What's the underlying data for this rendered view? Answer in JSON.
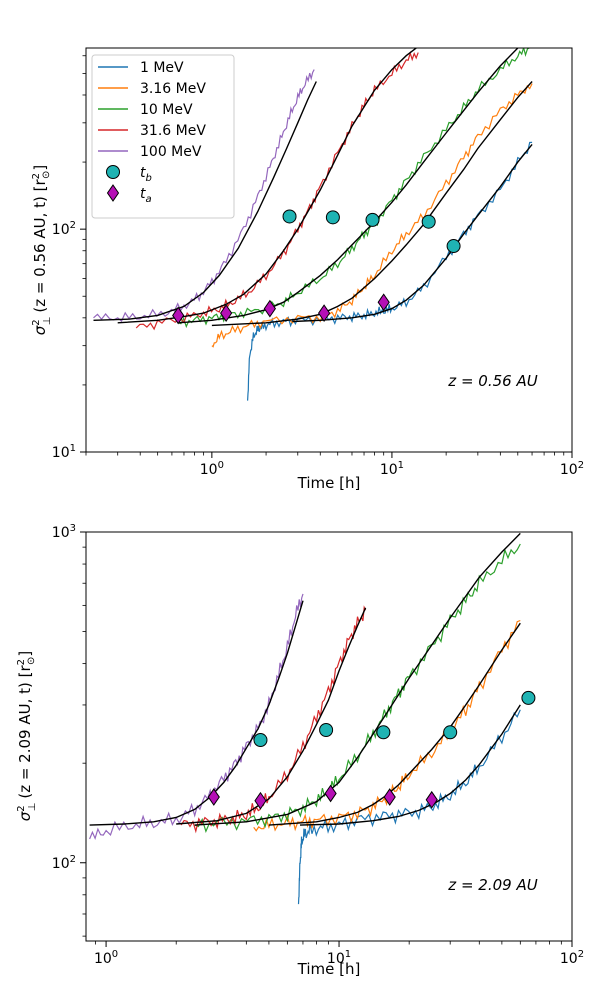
{
  "chart_data": [
    {
      "type": "line",
      "xscale": "log",
      "yscale": "log",
      "xlim": [
        0.2,
        100
      ],
      "ylim": [
        10,
        650
      ],
      "xticks": [
        {
          "value": 1,
          "base": "10",
          "exp": "0"
        },
        {
          "value": 10,
          "base": "10",
          "exp": "1"
        },
        {
          "value": 100,
          "base": "10",
          "exp": "2"
        }
      ],
      "yticks": [
        {
          "value": 10,
          "base": "10",
          "exp": "1"
        },
        {
          "value": 100,
          "base": "10",
          "exp": "2"
        }
      ],
      "xlabel": "Time [h]",
      "ylabel": "(z = 0.56 AU, t) [r",
      "annotation": "z = 0.56 AU",
      "legend_placement": "top-left",
      "legend": [
        {
          "label": "1 MeV",
          "kind": "line",
          "color": "#1f77b4"
        },
        {
          "label": "3.16 MeV",
          "kind": "line",
          "color": "#ff7f0e"
        },
        {
          "label": "10 MeV",
          "kind": "line",
          "color": "#2ca02c"
        },
        {
          "label": "31.6 MeV",
          "kind": "line",
          "color": "#d62728"
        },
        {
          "label": "100 MeV",
          "kind": "line",
          "color": "#9467bd"
        },
        {
          "label": "t",
          "sub": "b",
          "kind": "circle",
          "color": "#1fb3b3"
        },
        {
          "label": "t",
          "sub": "a",
          "kind": "diamond",
          "color": "#b50fb5"
        }
      ],
      "series": [
        {
          "name": "1 MeV",
          "color": "#1f77b4",
          "x": [
            1.58,
            1.62,
            1.7,
            1.8,
            1.9,
            2.1,
            2.5,
            3,
            4,
            5,
            6,
            7,
            8,
            9,
            10,
            12,
            15,
            20,
            25,
            30,
            40,
            50,
            60
          ],
          "y": [
            17,
            27,
            33,
            35.5,
            36.5,
            37.5,
            38.5,
            39,
            39.5,
            40,
            40.5,
            41,
            42,
            43,
            44,
            47,
            55,
            75,
            95,
            115,
            150,
            200,
            245
          ],
          "fit": {
            "x": [
              2.8,
              4,
              6,
              8,
              10,
              12,
              15,
              20,
              25,
              30,
              40,
              50,
              60
            ],
            "y": [
              38.5,
              39,
              40,
              41.5,
              44,
              48,
              56,
              74,
              95,
              115,
              155,
              200,
              240
            ]
          }
        },
        {
          "name": "3.16 MeV",
          "color": "#ff7f0e",
          "x": [
            1.0,
            1.1,
            1.3,
            1.6,
            2,
            3,
            4,
            5,
            6,
            7,
            8,
            10,
            12,
            15,
            20,
            25,
            30,
            40,
            50,
            60
          ],
          "y": [
            30,
            33,
            35,
            37,
            38.5,
            40,
            40,
            43,
            48,
            55,
            62,
            80,
            95,
            115,
            160,
            210,
            260,
            340,
            400,
            450
          ],
          "fit": {
            "x": [
              1.0,
              2,
              3,
              4,
              5,
              6,
              8,
              10,
              12,
              15,
              20,
              25,
              30,
              40,
              50,
              60
            ],
            "y": [
              37,
              38,
              39.5,
              41.5,
              45,
              49,
              60,
              72,
              85,
              105,
              145,
              185,
              230,
              310,
              390,
              460
            ]
          }
        },
        {
          "name": "10 MeV",
          "color": "#2ca02c",
          "x": [
            0.65,
            0.8,
            1,
            1.2,
            1.5,
            2,
            2.5,
            3,
            4,
            5,
            6,
            7,
            8,
            10,
            12,
            15,
            20,
            25,
            30,
            40,
            50,
            58
          ],
          "y": [
            38,
            39,
            40,
            41,
            42,
            44,
            47,
            52,
            60,
            70,
            82,
            95,
            105,
            135,
            165,
            210,
            280,
            350,
            420,
            520,
            600,
            650
          ],
          "fit": {
            "x": [
              0.65,
              1,
              1.5,
              2,
              2.5,
              3,
              4,
              5,
              6,
              8,
              10,
              12,
              15,
              20,
              25,
              30,
              40,
              50,
              60
            ],
            "y": [
              38,
              39,
              41,
              43.5,
              47,
              52,
              62,
              73,
              85,
              108,
              132,
              158,
              200,
              270,
              340,
              410,
              540,
              650,
              720
            ]
          }
        },
        {
          "name": "31.6 MeV",
          "color": "#d62728",
          "x": [
            0.38,
            0.5,
            0.7,
            0.9,
            1.1,
            1.3,
            1.6,
            2,
            2.5,
            3,
            3.5,
            4,
            5,
            6,
            7,
            8,
            10,
            12,
            14
          ],
          "y": [
            36,
            38,
            40,
            42,
            44,
            47,
            52,
            62,
            78,
            100,
            125,
            155,
            220,
            290,
            360,
            420,
            500,
            570,
            620
          ],
          "fit": {
            "x": [
              0.3,
              0.5,
              0.7,
              0.9,
              1.2,
              1.5,
              2,
              2.5,
              3,
              4,
              5,
              6,
              8,
              10,
              12,
              14
            ],
            "y": [
              38,
              39,
              40.5,
              42,
              46,
              51,
              63,
              80,
              100,
              150,
              215,
              290,
              420,
              520,
              600,
              660
            ]
          }
        },
        {
          "name": "100 MeV",
          "color": "#9467bd",
          "x": [
            0.22,
            0.3,
            0.4,
            0.55,
            0.7,
            0.85,
            1,
            1.2,
            1.5,
            1.8,
            2.1,
            2.4,
            2.7,
            3,
            3.3,
            3.7
          ],
          "y": [
            40,
            40,
            40.5,
            42,
            45,
            50,
            58,
            72,
            100,
            140,
            190,
            250,
            320,
            390,
            450,
            520
          ],
          "fit": {
            "x": [
              0.22,
              0.35,
              0.5,
              0.7,
              0.9,
              1.1,
              1.4,
              1.8,
              2.2,
              2.6,
              3,
              3.4,
              3.8
            ],
            "y": [
              39,
              39.5,
              41,
              45,
              52,
              62,
              82,
              120,
              170,
              230,
              300,
              380,
              460
            ]
          }
        }
      ],
      "tb_points": [
        {
          "x": 22,
          "y": 84
        },
        {
          "x": 16,
          "y": 108
        },
        {
          "x": 7.8,
          "y": 110
        },
        {
          "x": 4.7,
          "y": 113
        },
        {
          "x": 2.7,
          "y": 114
        }
      ],
      "ta_points": [
        {
          "x": 9.0,
          "y": 47
        },
        {
          "x": 4.2,
          "y": 42
        },
        {
          "x": 2.1,
          "y": 44
        },
        {
          "x": 1.2,
          "y": 42
        },
        {
          "x": 0.65,
          "y": 41
        }
      ]
    },
    {
      "type": "line",
      "xscale": "log",
      "yscale": "log",
      "xlim": [
        0.82,
        100
      ],
      "ylim": [
        58,
        1000
      ],
      "xticks": [
        {
          "value": 1,
          "base": "10",
          "exp": "0"
        },
        {
          "value": 10,
          "base": "10",
          "exp": "1"
        },
        {
          "value": 100,
          "base": "10",
          "exp": "2"
        }
      ],
      "yticks": [
        {
          "value": 100,
          "base": "10",
          "exp": "2"
        },
        {
          "value": 1000,
          "base": "10",
          "exp": "3"
        }
      ],
      "xlabel": "Time [h]",
      "ylabel": "(z = 2.09 AU, t) [r",
      "annotation": "z = 2.09 AU",
      "series": [
        {
          "name": "1 MeV",
          "color": "#1f77b4",
          "x": [
            6.7,
            6.8,
            6.9,
            7.1,
            7.5,
            8.5,
            10,
            12,
            15,
            18,
            22,
            26,
            30,
            35,
            40,
            50,
            60
          ],
          "y": [
            75,
            100,
            115,
            122,
            125,
            128,
            130,
            135,
            138,
            140,
            143,
            150,
            160,
            175,
            195,
            240,
            290
          ],
          "fit": {
            "x": [
              6.8,
              10,
              14,
              18,
              22,
              26,
              30,
              35,
              40,
              50,
              60
            ],
            "y": [
              130,
              131,
              134,
              138,
              144,
              152,
              162,
              178,
              198,
              245,
              300
            ]
          }
        },
        {
          "name": "3.16 MeV",
          "color": "#ff7f0e",
          "x": [
            4.3,
            5,
            6,
            7,
            8,
            10,
            12,
            14,
            16,
            18,
            20,
            25,
            30,
            35,
            40,
            50,
            60
          ],
          "y": [
            128,
            130,
            132,
            133,
            134,
            137,
            141,
            148,
            158,
            170,
            185,
            215,
            250,
            290,
            340,
            440,
            540
          ],
          "fit": {
            "x": [
              5,
              8,
              10,
              12,
              14,
              16,
              18,
              20,
              25,
              30,
              35,
              40,
              50,
              60
            ],
            "y": [
              130,
              133,
              137,
              142,
              150,
              160,
              172,
              186,
              220,
              257,
              300,
              345,
              440,
              530
            ]
          }
        },
        {
          "name": "10 MeV",
          "color": "#2ca02c",
          "x": [
            2.4,
            3,
            4,
            5,
            6,
            7,
            8,
            9,
            10,
            12,
            14,
            16,
            18,
            20,
            25,
            30,
            35,
            40,
            50,
            60
          ],
          "y": [
            130,
            132,
            134,
            136,
            140,
            146,
            155,
            165,
            180,
            210,
            245,
            285,
            325,
            365,
            450,
            540,
            620,
            700,
            820,
            920
          ],
          "fit": {
            "x": [
              2.4,
              4,
              6,
              8,
              10,
              12,
              14,
              16,
              18,
              20,
              25,
              30,
              35,
              40,
              50,
              60
            ],
            "y": [
              130,
              133,
              140,
              153,
              175,
              208,
              245,
              283,
              322,
              362,
              455,
              550,
              640,
              730,
              870,
              990
            ]
          }
        },
        {
          "name": "31.6 MeV",
          "color": "#d62728",
          "x": [
            2.1,
            2.5,
            3,
            3.5,
            4,
            4.5,
            5,
            6,
            7,
            8,
            9,
            10,
            11,
            12,
            13
          ],
          "y": [
            130,
            132,
            134,
            136,
            140,
            147,
            158,
            185,
            225,
            275,
            330,
            400,
            470,
            530,
            580
          ],
          "fit": {
            "x": [
              2,
              3,
              4,
              5,
              6,
              7,
              8,
              9,
              10,
              11,
              12,
              13
            ],
            "y": [
              131,
              134,
              141,
              156,
              182,
              218,
              262,
              310,
              380,
              450,
              520,
              590
            ]
          }
        },
        {
          "name": "100 MeV",
          "color": "#9467bd",
          "x": [
            0.85,
            1,
            1.3,
            1.6,
            2,
            2.4,
            2.8,
            3.2,
            3.6,
            4,
            4.5,
            5,
            5.5,
            6,
            6.5,
            7
          ],
          "y": [
            118,
            125,
            130,
            132,
            135,
            145,
            160,
            180,
            200,
            225,
            255,
            300,
            370,
            450,
            560,
            650
          ],
          "fit": {
            "x": [
              0.85,
              1.2,
              1.6,
              2,
              2.4,
              2.8,
              3.2,
              3.6,
              4,
              4.5,
              5,
              5.5,
              6,
              6.5,
              7
            ],
            "y": [
              130,
              131,
              133,
              137,
              145,
              158,
              175,
              196,
              222,
              255,
              300,
              360,
              430,
              520,
              620
            ]
          }
        }
      ],
      "tb_points": [
        {
          "x": 65,
          "y": 315
        },
        {
          "x": 30,
          "y": 248
        },
        {
          "x": 15.5,
          "y": 248
        },
        {
          "x": 8.8,
          "y": 252
        },
        {
          "x": 4.6,
          "y": 235
        }
      ],
      "ta_points": [
        {
          "x": 25,
          "y": 155
        },
        {
          "x": 16.5,
          "y": 158
        },
        {
          "x": 9.2,
          "y": 162
        },
        {
          "x": 4.6,
          "y": 154
        },
        {
          "x": 2.9,
          "y": 158
        }
      ]
    }
  ]
}
